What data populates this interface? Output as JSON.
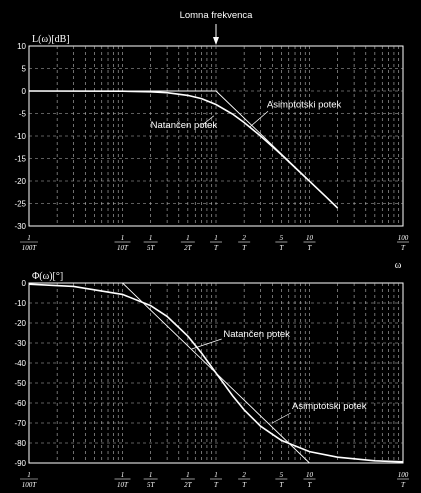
{
  "chart_data": [
    {
      "type": "line",
      "ylabel": "L(ω)[dB]",
      "x_scale": "log",
      "x_unit": "ωT",
      "xlim": [
        0.01,
        100
      ],
      "ylim": [
        -30,
        10
      ],
      "yticks": [
        10,
        5,
        0,
        -5,
        -10,
        -15,
        -20,
        -25,
        -30
      ],
      "xticks": [
        {
          "value": 0.01,
          "num": "1",
          "den": "100T"
        },
        {
          "value": 0.1,
          "num": "1",
          "den": "10T"
        },
        {
          "value": 0.2,
          "num": "1",
          "den": "5T"
        },
        {
          "value": 0.5,
          "num": "1",
          "den": "2T"
        },
        {
          "value": 1,
          "num": "1",
          "den": "T"
        },
        {
          "value": 2,
          "num": "2",
          "den": "T"
        },
        {
          "value": 5,
          "num": "5",
          "den": "T"
        },
        {
          "value": 10,
          "num": "10",
          "den": "T"
        },
        {
          "value": 100,
          "num": "100",
          "den": "T"
        }
      ],
      "grid": true,
      "series": [
        {
          "name": "Natančen potek",
          "x": [
            0.01,
            0.1,
            0.2,
            0.3,
            0.5,
            0.7,
            1,
            1.5,
            2,
            3,
            5,
            7,
            10,
            15,
            20
          ],
          "y": [
            0,
            -0.04,
            -0.17,
            -0.37,
            -0.97,
            -1.7,
            -3.01,
            -5.1,
            -6.99,
            -10.0,
            -14.15,
            -17.0,
            -20.04,
            -23.5,
            -26.0
          ]
        },
        {
          "name": "Asimptotski potek",
          "x": [
            0.01,
            1,
            20
          ],
          "y": [
            0,
            0,
            -26.0
          ]
        }
      ],
      "annotations": [
        {
          "text": "Lomna frekvenca",
          "x": 1
        },
        {
          "text": "Asimptotski potek",
          "x": 3.5,
          "y": -3
        },
        {
          "text": "Natančen potek",
          "x": 0.2,
          "y": -7.5
        }
      ]
    },
    {
      "type": "line",
      "ylabel": "Φ(ω)[°]",
      "x_scale": "log",
      "x_unit": "ωT",
      "xlabel": "ω",
      "xlim": [
        0.01,
        100
      ],
      "ylim": [
        -90,
        0
      ],
      "yticks": [
        0,
        -10,
        -20,
        -30,
        -40,
        -50,
        -60,
        -70,
        -80,
        -90
      ],
      "xticks": [
        {
          "value": 0.01,
          "num": "1",
          "den": "100T"
        },
        {
          "value": 0.1,
          "num": "1",
          "den": "10T"
        },
        {
          "value": 0.2,
          "num": "1",
          "den": "5T"
        },
        {
          "value": 0.5,
          "num": "1",
          "den": "2T"
        },
        {
          "value": 1,
          "num": "1",
          "den": "T"
        },
        {
          "value": 2,
          "num": "2",
          "den": "T"
        },
        {
          "value": 5,
          "num": "5",
          "den": "T"
        },
        {
          "value": 10,
          "num": "10",
          "den": "T"
        },
        {
          "value": 100,
          "num": "100",
          "den": "T"
        }
      ],
      "grid": true,
      "series": [
        {
          "name": "Natančen potek",
          "x": [
            0.01,
            0.03,
            0.1,
            0.2,
            0.3,
            0.5,
            0.7,
            1,
            1.5,
            2,
            3,
            5,
            10,
            20,
            50,
            100
          ],
          "y": [
            -0.6,
            -1.7,
            -5.7,
            -11.3,
            -16.7,
            -26.6,
            -35.0,
            -45.0,
            -56.3,
            -63.4,
            -71.6,
            -78.7,
            -84.3,
            -87.1,
            -88.9,
            -89.4
          ]
        },
        {
          "name": "Asimptotski potek",
          "x": [
            0.01,
            0.1,
            10,
            100
          ],
          "y": [
            0,
            0,
            -90,
            -90
          ]
        }
      ],
      "annotations": [
        {
          "text": "Natančen potek",
          "x": 1.2,
          "y": -27
        },
        {
          "text": "Asimptotski potek",
          "x": 6.5,
          "y": -63
        }
      ]
    }
  ]
}
